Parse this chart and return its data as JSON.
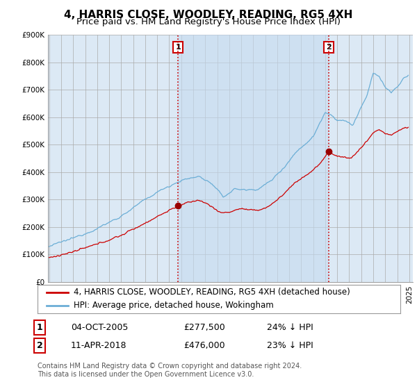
{
  "title": "4, HARRIS CLOSE, WOODLEY, READING, RG5 4XH",
  "subtitle": "Price paid vs. HM Land Registry's House Price Index (HPI)",
  "ylim": [
    0,
    900000
  ],
  "xlim_start": 1994.9,
  "xlim_end": 2025.3,
  "hpi_color": "#6baed6",
  "price_color": "#cc0000",
  "vline_color": "#cc0000",
  "plot_bg": "#dce9f5",
  "shade_color": "#c6dbef",
  "sale1_x": 2005.75,
  "sale1_y": 277500,
  "sale2_x": 2018.27,
  "sale2_y": 476000,
  "legend_label1": "4, HARRIS CLOSE, WOODLEY, READING, RG5 4XH (detached house)",
  "legend_label2": "HPI: Average price, detached house, Wokingham",
  "table_row1": [
    "1",
    "04-OCT-2005",
    "£277,500",
    "24% ↓ HPI"
  ],
  "table_row2": [
    "2",
    "11-APR-2018",
    "£476,000",
    "23% ↓ HPI"
  ],
  "footer": "Contains HM Land Registry data © Crown copyright and database right 2024.\nThis data is licensed under the Open Government Licence v3.0.",
  "title_fontsize": 11,
  "subtitle_fontsize": 9.5
}
